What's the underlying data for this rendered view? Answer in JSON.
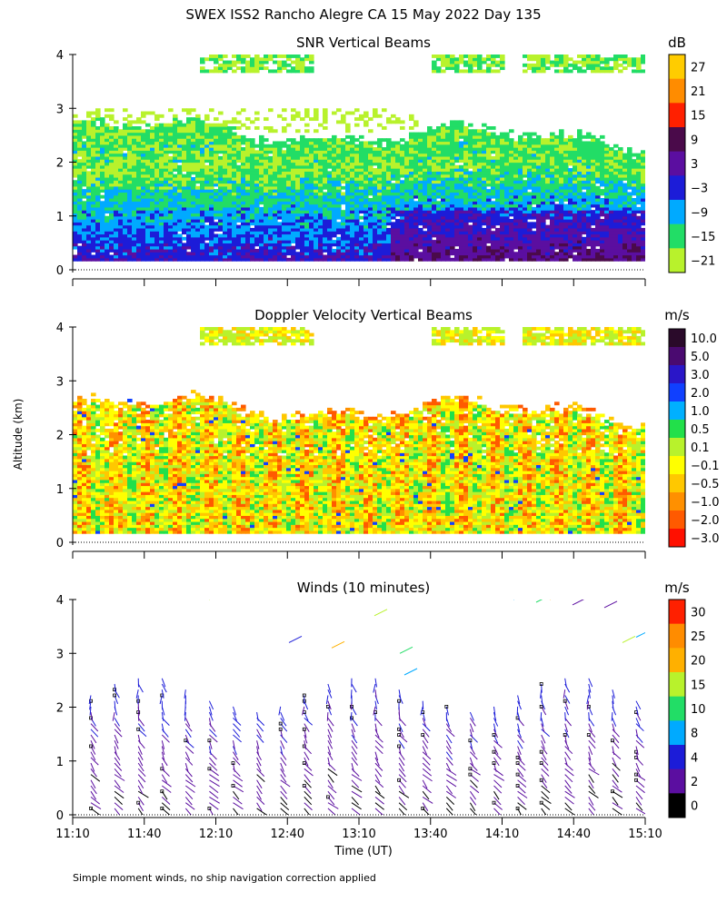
{
  "figure": {
    "title": "SWEX ISS2 Rancho Alegre CA  15 May 2022 Day 135",
    "ylabel": "Altitude (km)",
    "xlabel": "Time (UT)",
    "footnote": "Simple moment winds, no ship navigation correction applied",
    "time_ticks": [
      "11:10",
      "11:40",
      "12:10",
      "12:40",
      "13:10",
      "13:40",
      "14:10",
      "14:40",
      "15:10"
    ],
    "altitude_ticks": [
      "0",
      "1",
      "2",
      "3",
      "4"
    ]
  },
  "chart_data": [
    {
      "type": "heatmap",
      "title": "SNR Vertical Beams",
      "units": "dB",
      "x_range": [
        "11:10",
        "15:10"
      ],
      "ylim": [
        0,
        4
      ],
      "colorbar": {
        "labels": [
          "27",
          "21",
          "15",
          "9",
          "3",
          "−3",
          "−9",
          "−15",
          "−21"
        ],
        "colors": [
          "#ffcc00",
          "#ff8c00",
          "#ff2000",
          "#4a0a4a",
          "#5b0ea0",
          "#1c1cd8",
          "#00aaff",
          "#22dd66",
          "#b8f22c"
        ]
      }
    },
    {
      "type": "heatmap",
      "title": "Doppler Velocity Vertical Beams",
      "units": "m/s",
      "x_range": [
        "11:10",
        "15:10"
      ],
      "ylim": [
        0,
        4
      ],
      "colorbar": {
        "labels": [
          "10.0",
          "5.0",
          "3.0",
          "2.0",
          "1.0",
          "0.5",
          "0.1",
          "−0.1",
          "−0.5",
          "−1.0",
          "−2.0",
          "−3.0"
        ],
        "colors": [
          "#2a0a2a",
          "#4a0a70",
          "#2a16c8",
          "#1040ff",
          "#00b0ff",
          "#22e04a",
          "#b8f22c",
          "#ffff00",
          "#ffc800",
          "#ff9000",
          "#ff5a00",
          "#ff1000"
        ]
      }
    },
    {
      "type": "wind_barbs",
      "title": "Winds (10 minutes)",
      "units": "m/s",
      "x_range": [
        "11:10",
        "15:10"
      ],
      "ylim": [
        0,
        4
      ],
      "colorbar": {
        "labels": [
          "30",
          "25",
          "20",
          "15",
          "10",
          "8",
          "4",
          "2",
          "0"
        ],
        "colors": [
          "#ff2000",
          "#ff8c00",
          "#ffb000",
          "#b8f22c",
          "#22dd66",
          "#00aaff",
          "#1c1cd8",
          "#5b0ea0",
          "#000000"
        ]
      }
    }
  ]
}
